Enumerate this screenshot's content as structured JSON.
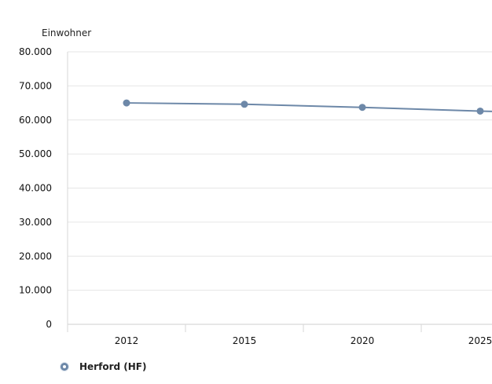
{
  "chart_data": {
    "type": "line",
    "ylabel": "Einwohner",
    "x": [
      "2012",
      "2015",
      "2020",
      "2025"
    ],
    "series": [
      {
        "name": "Herford (HF)",
        "values": [
          65000,
          64600,
          63700,
          62600
        ],
        "color": "#6d88a8"
      }
    ],
    "y_ticks": [
      "0",
      "10.000",
      "20.000",
      "30.000",
      "40.000",
      "50.000",
      "60.000",
      "70.000",
      "80.000"
    ],
    "ylim": [
      0,
      80000
    ],
    "grid": true,
    "legend_position": "bottom-left"
  }
}
